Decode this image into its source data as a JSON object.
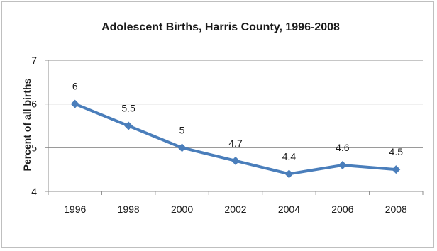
{
  "chart_data": {
    "type": "line",
    "title": "Adolescent Births, Harris County,  1996-2008",
    "xlabel": "",
    "ylabel": "Percent of all births",
    "x": [
      "1996",
      "1998",
      "2000",
      "2002",
      "2004",
      "2006",
      "2008"
    ],
    "series": [
      {
        "values": [
          6,
          5.5,
          5,
          4.7,
          4.4,
          4.6,
          4.5
        ],
        "data_labels": [
          "6",
          "5.5",
          "5",
          "4.7",
          "4.4",
          "4.6",
          "4.5"
        ],
        "color": "#4a7ebb",
        "marker": "diamond"
      }
    ],
    "ylim": [
      4,
      7
    ],
    "yticks": [
      4,
      5,
      6,
      7
    ],
    "ytick_labels": [
      "4",
      "5",
      "6",
      "7"
    ],
    "grid": "horizontal major gridlines",
    "legend": "none"
  }
}
